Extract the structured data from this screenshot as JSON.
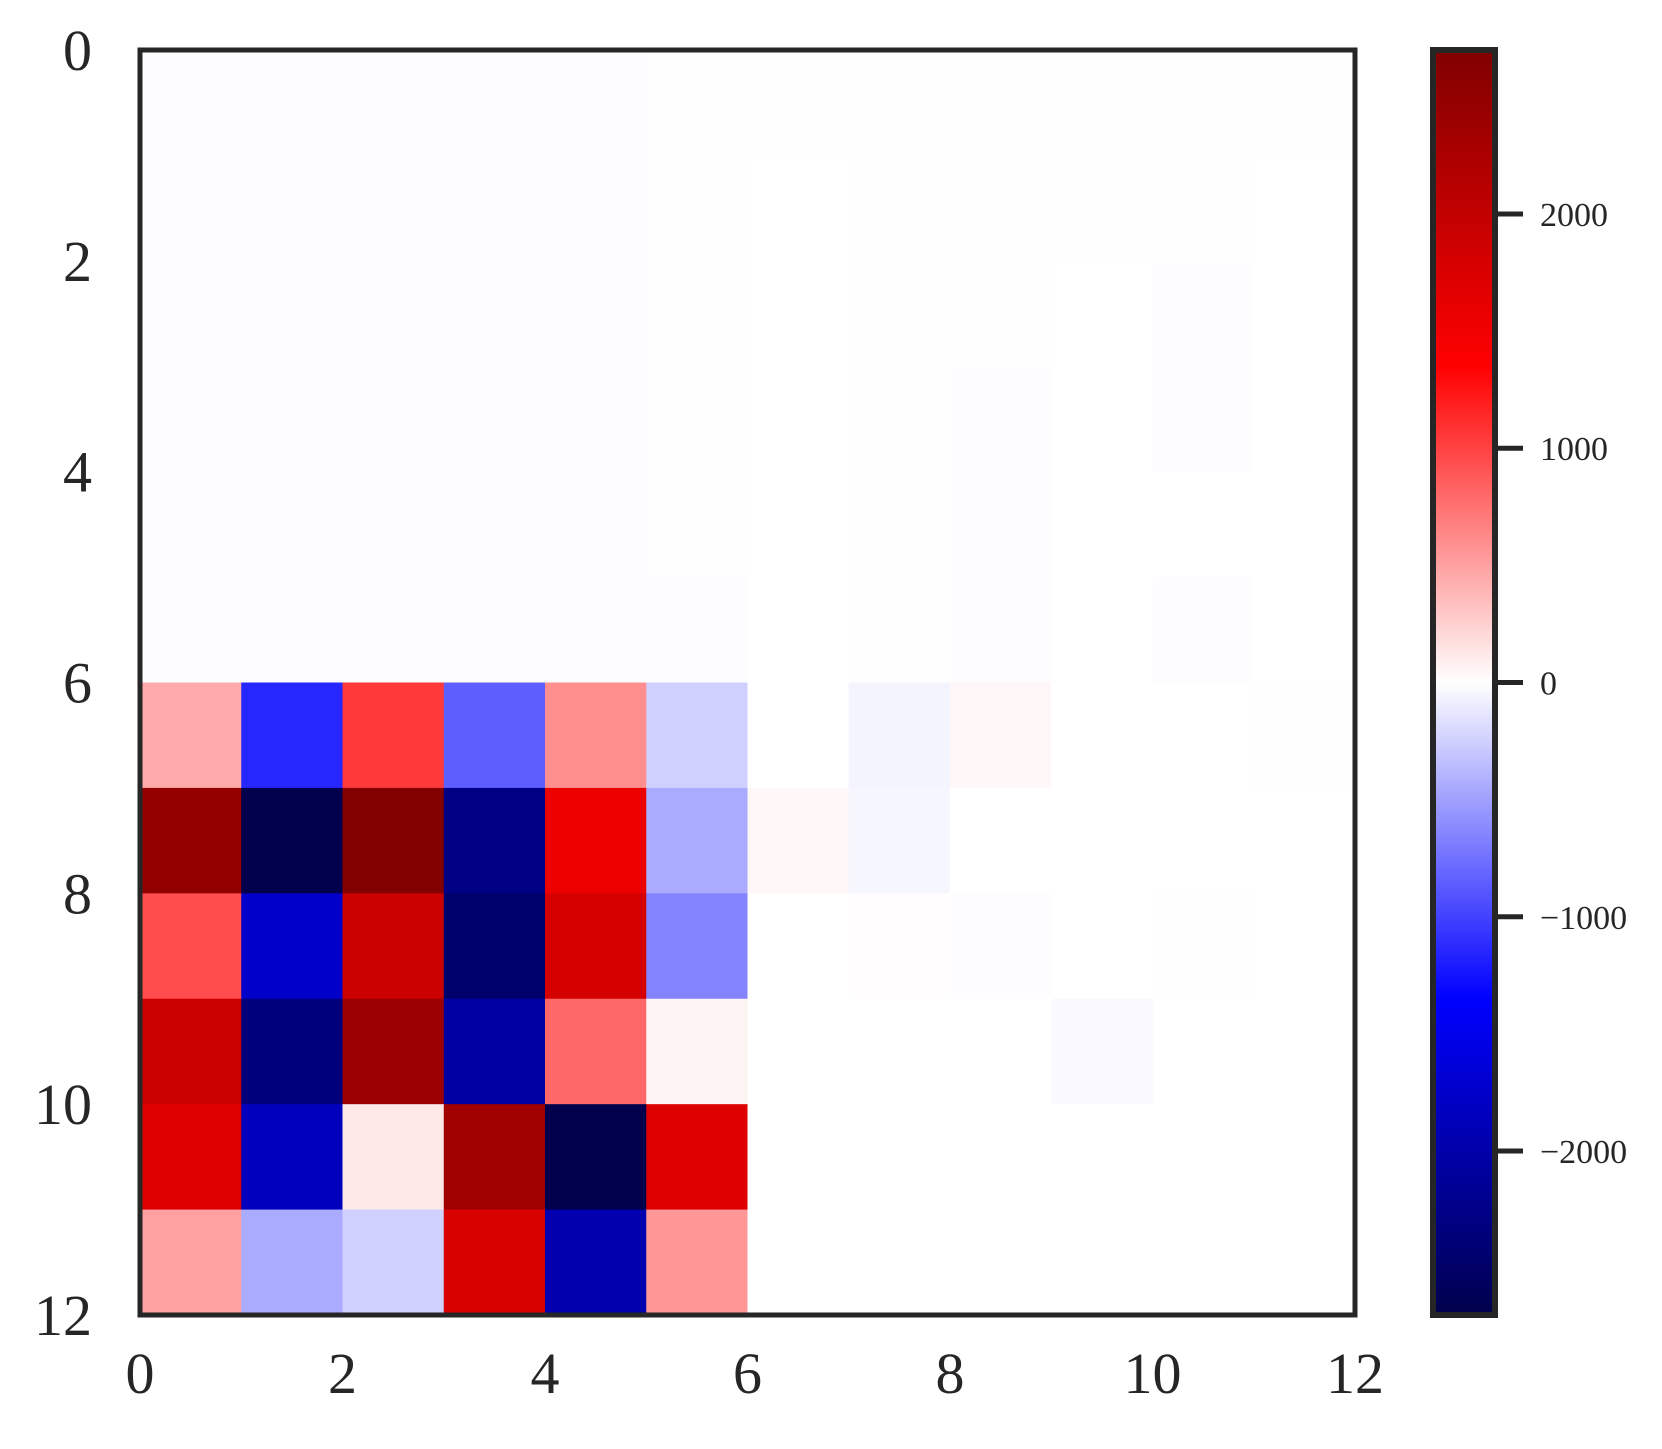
{
  "chart_data": {
    "type": "heatmap",
    "title": "",
    "xlabel": "",
    "ylabel": "",
    "xlim": [
      0,
      12
    ],
    "ylim": [
      12,
      0
    ],
    "x_ticks": [
      0,
      2,
      4,
      6,
      8,
      10,
      12
    ],
    "x_tick_labels": [
      "0",
      "2",
      "4",
      "6",
      "8",
      "10",
      "12"
    ],
    "y_ticks": [
      0,
      2,
      4,
      6,
      8,
      10,
      12
    ],
    "y_tick_labels": [
      "0",
      "2",
      "4",
      "6",
      "8",
      "10",
      "12"
    ],
    "grid": false,
    "colormap": "seismic",
    "colorbar": {
      "placement": "right",
      "vmin": -2700,
      "vmax": 2700,
      "ticks": [
        2000,
        1000,
        0,
        -1000,
        -2000
      ],
      "tick_labels": [
        "2000",
        "1000",
        "0",
        "−1000",
        "−2000"
      ]
    },
    "rows": 12,
    "cols": 12,
    "values": [
      [
        -10,
        -12,
        -10,
        -10,
        -8,
        -6,
        -5,
        -6,
        -4,
        -4,
        -4,
        -3
      ],
      [
        -10,
        -12,
        -10,
        -10,
        -8,
        -6,
        0,
        -6,
        -4,
        -3,
        -3,
        0
      ],
      [
        -10,
        -12,
        -10,
        -10,
        -8,
        -6,
        0,
        -6,
        -4,
        0,
        -8,
        0
      ],
      [
        -10,
        -12,
        -10,
        -10,
        -8,
        -6,
        0,
        -6,
        -8,
        0,
        -8,
        0
      ],
      [
        -10,
        -12,
        -10,
        -10,
        -8,
        -6,
        0,
        -6,
        -8,
        0,
        -2,
        0
      ],
      [
        -10,
        -12,
        -10,
        -12,
        -8,
        -10,
        0,
        -6,
        -8,
        0,
        -8,
        0
      ],
      [
        450,
        -1150,
        1050,
        -850,
        600,
        -250,
        0,
        -60,
        40,
        0,
        0,
        -4
      ],
      [
        2500,
        -2700,
        2670,
        -2280,
        1550,
        -450,
        40,
        -50,
        0,
        0,
        0,
        0
      ],
      [
        950,
        -1750,
        1900,
        -2450,
        1800,
        -650,
        0,
        10,
        -10,
        0,
        -3,
        0
      ],
      [
        1900,
        -2330,
        2400,
        -2050,
        800,
        60,
        0,
        0,
        0,
        -30,
        0,
        0
      ],
      [
        1700,
        -1850,
        120,
        2350,
        -2700,
        1700,
        0,
        0,
        0,
        0,
        0,
        0
      ],
      [
        500,
        -450,
        -250,
        1750,
        -1950,
        550,
        0,
        0,
        0,
        0,
        0,
        0
      ]
    ]
  }
}
